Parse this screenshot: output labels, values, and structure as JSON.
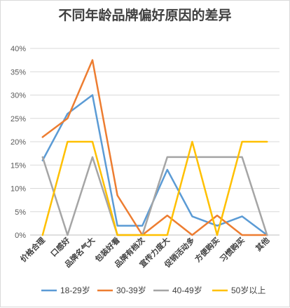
{
  "chart_data": {
    "type": "line",
    "title": "不同年龄品牌偏好原因的差异",
    "categories": [
      "价格合理",
      "口感好",
      "品牌名气大",
      "包装好看",
      "品牌有档次",
      "宣传力度大",
      "促销活动多",
      "方便购买",
      "习惯购买",
      "其他"
    ],
    "ylim": [
      0,
      0.4
    ],
    "yticks": [
      "0%",
      "5%",
      "10%",
      "15%",
      "20%",
      "25%",
      "30%",
      "35%",
      "40%"
    ],
    "grid": "horizontal",
    "legend": "bottom",
    "series": [
      {
        "name": "18-29岁",
        "color": "#5b9bd5",
        "values": [
          0.16,
          0.26,
          0.3,
          0.02,
          0.02,
          0.14,
          0.04,
          0.02,
          0.04,
          0.0
        ]
      },
      {
        "name": "30-39岁",
        "color": "#ed7d31",
        "values": [
          0.21,
          0.25,
          0.375,
          0.085,
          0.0,
          0.042,
          0.0,
          0.042,
          0.0,
          0.0
        ]
      },
      {
        "name": "40-49岁",
        "color": "#a5a5a5",
        "values": [
          0.167,
          0.0,
          0.167,
          0.0,
          0.0,
          0.167,
          0.167,
          0.167,
          0.167,
          0.0
        ]
      },
      {
        "name": "50岁以上",
        "color": "#ffc000",
        "values": [
          0.0,
          0.2,
          0.2,
          0.0,
          0.0,
          0.0,
          0.2,
          0.0,
          0.2,
          0.2
        ]
      }
    ]
  }
}
